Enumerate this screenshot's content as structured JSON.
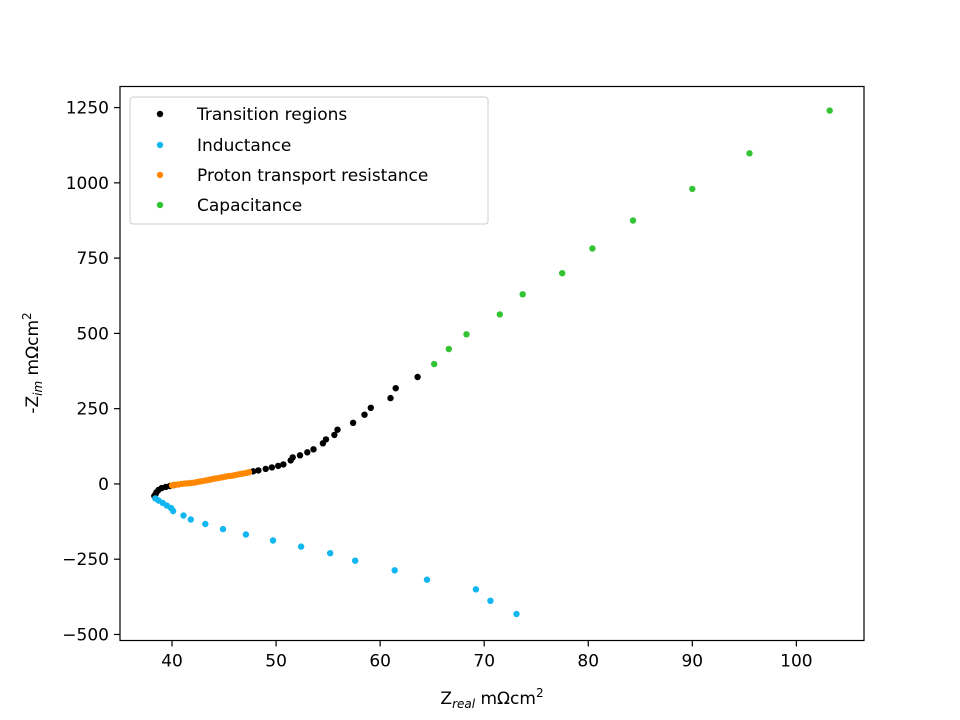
{
  "chart_data": {
    "type": "scatter",
    "xlabel": "Z",
    "xlabel_sub": "real",
    "xlabel_unit": " mΩcm",
    "xlabel_sup": "2",
    "ylabel": "-Z",
    "ylabel_sub": "im",
    "ylabel_unit": " mΩcm",
    "ylabel_sup": "2",
    "xlim": [
      35,
      106.5
    ],
    "ylim": [
      -520,
      1320
    ],
    "xticks": [
      40,
      50,
      60,
      70,
      80,
      90,
      100
    ],
    "yticks": [
      -500,
      -250,
      0,
      250,
      500,
      750,
      1000,
      1250
    ],
    "ytick_labels": [
      "−500",
      "−250",
      "0",
      "250",
      "500",
      "750",
      "1000",
      "1250"
    ],
    "legend_position": "top-left",
    "series": [
      {
        "name": "Transition regions",
        "color": "#000000",
        "points": [
          [
            38.3,
            -40
          ],
          [
            38.4,
            -35
          ],
          [
            38.5,
            -28
          ],
          [
            38.7,
            -20
          ],
          [
            39.0,
            -14
          ],
          [
            39.4,
            -10
          ],
          [
            39.8,
            -7
          ],
          [
            40.2,
            -4
          ],
          [
            47.8,
            42
          ],
          [
            48.3,
            45
          ],
          [
            49.0,
            50
          ],
          [
            49.6,
            55
          ],
          [
            50.2,
            60
          ],
          [
            50.7,
            65
          ],
          [
            51.4,
            78
          ],
          [
            51.6,
            88
          ],
          [
            52.3,
            95
          ],
          [
            53.0,
            105
          ],
          [
            53.6,
            115
          ],
          [
            54.5,
            135
          ],
          [
            54.8,
            148
          ],
          [
            55.6,
            163
          ],
          [
            55.9,
            180
          ],
          [
            57.4,
            203
          ],
          [
            58.5,
            230
          ],
          [
            59.1,
            253
          ],
          [
            61.0,
            285
          ],
          [
            61.5,
            318
          ],
          [
            63.6,
            355
          ]
        ]
      },
      {
        "name": "Inductance",
        "color": "#12b6f0",
        "points": [
          [
            38.4,
            -48
          ],
          [
            38.7,
            -55
          ],
          [
            39.1,
            -63
          ],
          [
            39.5,
            -72
          ],
          [
            39.9,
            -80
          ],
          [
            40.1,
            -90
          ],
          [
            41.1,
            -105
          ],
          [
            41.8,
            -118
          ],
          [
            43.2,
            -133
          ],
          [
            44.9,
            -150
          ],
          [
            47.1,
            -168
          ],
          [
            49.7,
            -188
          ],
          [
            52.4,
            -208
          ],
          [
            55.2,
            -230
          ],
          [
            57.6,
            -255
          ],
          [
            61.4,
            -287
          ],
          [
            64.5,
            -318
          ],
          [
            69.2,
            -350
          ],
          [
            70.6,
            -388
          ],
          [
            73.1,
            -432
          ]
        ]
      },
      {
        "name": "Proton transport resistance",
        "color": "#ff8800",
        "points": [
          [
            40.0,
            -5
          ],
          [
            40.3,
            -3
          ],
          [
            40.6,
            -2
          ],
          [
            40.9,
            0
          ],
          [
            41.2,
            1
          ],
          [
            41.5,
            2
          ],
          [
            41.8,
            3
          ],
          [
            42.1,
            4
          ],
          [
            42.4,
            6
          ],
          [
            42.7,
            8
          ],
          [
            43.0,
            10
          ],
          [
            43.3,
            12
          ],
          [
            43.6,
            14
          ],
          [
            43.9,
            16
          ],
          [
            44.2,
            18
          ],
          [
            44.5,
            20
          ],
          [
            44.8,
            22
          ],
          [
            45.1,
            24
          ],
          [
            45.4,
            26
          ],
          [
            45.7,
            27
          ],
          [
            46.0,
            29
          ],
          [
            46.3,
            31
          ],
          [
            46.6,
            33
          ],
          [
            46.9,
            35
          ],
          [
            47.2,
            37
          ],
          [
            47.4,
            39
          ]
        ]
      },
      {
        "name": "Capacitance",
        "color": "#33c433",
        "points": [
          [
            65.2,
            398
          ],
          [
            66.6,
            448
          ],
          [
            68.3,
            497
          ],
          [
            71.5,
            563
          ],
          [
            73.7,
            630
          ],
          [
            77.5,
            700
          ],
          [
            80.4,
            782
          ],
          [
            84.3,
            875
          ],
          [
            90.0,
            980
          ],
          [
            95.5,
            1098
          ],
          [
            103.2,
            1240
          ]
        ]
      }
    ]
  }
}
